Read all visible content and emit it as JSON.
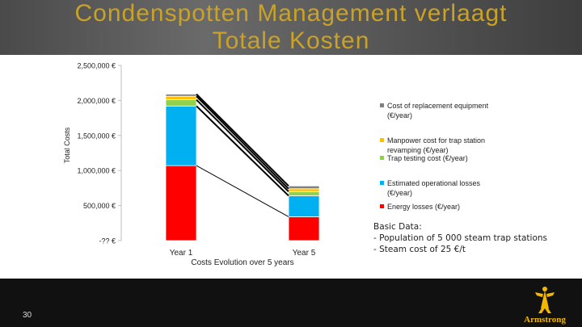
{
  "title_line1": "Condenspotten Management verlaagt",
  "title_line2": "Totale Kosten",
  "page_number": "30",
  "logo_text": "Armstrong",
  "basic_data": {
    "heading": "Basic Data:",
    "lines": [
      "- Population of 5 000 steam trap stations",
      "- Steam cost of 25 €/t"
    ]
  },
  "colors": {
    "title": "#c9a227",
    "banner": "#555555",
    "footer": "#111111"
  },
  "chart_data": {
    "type": "bar",
    "stacked": true,
    "categories": [
      "Year 1",
      "Year 5"
    ],
    "xlabel": "Costs Evolution over 5 years",
    "ylabel": "Total Costs",
    "ylim": [
      0,
      2500000
    ],
    "yticks": [
      0,
      500000,
      1000000,
      1500000,
      2000000,
      2500000
    ],
    "ytick_labels": [
      "-?? €",
      "500,000 €",
      "1,000,000 €",
      "1,500,000 €",
      "2,000,000 €",
      "2,500,000 €"
    ],
    "series": [
      {
        "name": "Energy losses (€/year)",
        "color": "#ff0000",
        "values": [
          1070000,
          340000
        ]
      },
      {
        "name": "Estimated operational losses (€/year)",
        "color": "#00b0f0",
        "values": [
          850000,
          300000
        ]
      },
      {
        "name": "Trap testing cost (€/year)",
        "color": "#92d050",
        "values": [
          90000,
          60000
        ]
      },
      {
        "name": "Manpower cost for trap station revamping (€/year)",
        "color": "#ffc000",
        "values": [
          50000,
          40000
        ]
      },
      {
        "name": "Cost of replacement equipment (€/year)",
        "color": "#808080",
        "values": [
          30000,
          40000
        ]
      }
    ],
    "legend_position": "right",
    "legend_order": [
      4,
      3,
      2,
      1,
      0
    ],
    "connector_lines": true,
    "grid": false
  }
}
